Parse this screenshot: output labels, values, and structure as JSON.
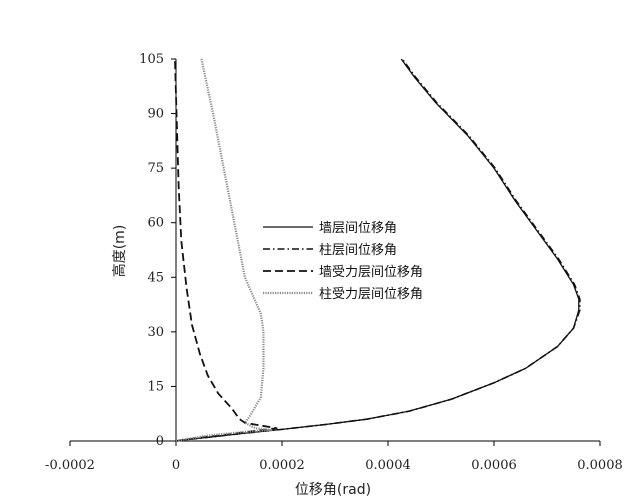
{
  "chart_data": {
    "type": "line",
    "xlabel": "位移角(rad)",
    "ylabel": "高度(m)",
    "xlim": [
      -0.0002,
      0.0008
    ],
    "ylim": [
      0,
      105
    ],
    "xticks": [
      -0.0002,
      0,
      0.0002,
      0.0004,
      0.0006,
      0.0008
    ],
    "xtick_labels": [
      "-0.0002",
      "0",
      "0.0002",
      "0.0004",
      "0.0006",
      "0.0008"
    ],
    "yticks": [
      0,
      15,
      30,
      45,
      60,
      75,
      90,
      105
    ],
    "ytick_labels": [
      "0",
      "15",
      "30",
      "45",
      "60",
      "75",
      "90",
      "105"
    ],
    "grid": false,
    "legend_position": "center",
    "series": [
      {
        "name": "墙层间位移角",
        "style": "solid",
        "points": [
          [
            0,
            0
          ],
          [
            2e-05,
            0.4
          ],
          [
            6e-05,
            1
          ],
          [
            0.00012,
            2
          ],
          [
            0.0002,
            3.2
          ],
          [
            0.00028,
            4.5
          ],
          [
            0.00036,
            6
          ],
          [
            0.00044,
            8.2
          ],
          [
            0.00052,
            11.5
          ],
          [
            0.0006,
            16
          ],
          [
            0.00066,
            20
          ],
          [
            0.00072,
            26
          ],
          [
            0.00075,
            31
          ],
          [
            0.00076,
            36
          ],
          [
            0.00076,
            39
          ],
          [
            0.00075,
            43
          ],
          [
            0.00072,
            50
          ],
          [
            0.00068,
            58
          ],
          [
            0.00064,
            66
          ],
          [
            0.0006,
            75
          ],
          [
            0.00055,
            84
          ],
          [
            0.00049,
            93
          ],
          [
            0.00045,
            100
          ],
          [
            0.000425,
            105
          ]
        ]
      },
      {
        "name": "柱层间位移角",
        "style": "dash-dot",
        "points": [
          [
            0,
            0
          ],
          [
            2e-05,
            0.4
          ],
          [
            6e-05,
            1
          ],
          [
            0.00012,
            2
          ],
          [
            0.0002,
            3.2
          ],
          [
            0.00028,
            4.5
          ],
          [
            0.00036,
            6
          ],
          [
            0.00044,
            8.2
          ],
          [
            0.00052,
            11.5
          ],
          [
            0.0006,
            16
          ],
          [
            0.00066,
            20
          ],
          [
            0.00072,
            26
          ],
          [
            0.00075,
            31
          ],
          [
            0.000762,
            36
          ],
          [
            0.000762,
            39
          ],
          [
            0.000752,
            43
          ],
          [
            0.000722,
            50
          ],
          [
            0.000682,
            58
          ],
          [
            0.000642,
            66
          ],
          [
            0.000602,
            75
          ],
          [
            0.000552,
            84
          ],
          [
            0.000492,
            93
          ],
          [
            0.000452,
            100
          ],
          [
            0.000427,
            105
          ]
        ]
      },
      {
        "name": "墙受力层间位移角",
        "style": "dashed",
        "points": [
          [
            0,
            0
          ],
          [
            5e-05,
            1
          ],
          [
            0.0001,
            1.8
          ],
          [
            0.00016,
            3
          ],
          [
            0.00019,
            3.5
          ],
          [
            0.00013,
            5
          ],
          [
            0.00012,
            6
          ],
          [
            0.000105,
            9
          ],
          [
            8e-05,
            13
          ],
          [
            6e-05,
            18
          ],
          [
            4.5e-05,
            24
          ],
          [
            3e-05,
            32
          ],
          [
            2e-05,
            42
          ],
          [
            1e-05,
            55
          ],
          [
            5e-06,
            70
          ],
          [
            2e-06,
            85
          ],
          [
            0,
            95
          ],
          [
            -2e-06,
            105
          ]
        ]
      },
      {
        "name": "柱受力层间位移角",
        "style": "dotted",
        "points": [
          [
            0,
            0
          ],
          [
            6e-05,
            1.5
          ],
          [
            0.00013,
            2.5
          ],
          [
            0.00018,
            3
          ],
          [
            0.00015,
            3.5
          ],
          [
            0.00013,
            5
          ],
          [
            0.00014,
            7
          ],
          [
            0.00016,
            12
          ],
          [
            0.000165,
            20
          ],
          [
            0.000165,
            30
          ],
          [
            0.00016,
            35
          ],
          [
            0.00013,
            45
          ],
          [
            0.00011,
            60
          ],
          [
            9e-05,
            75
          ],
          [
            7e-05,
            90
          ],
          [
            4.8e-05,
            105
          ]
        ]
      }
    ]
  }
}
